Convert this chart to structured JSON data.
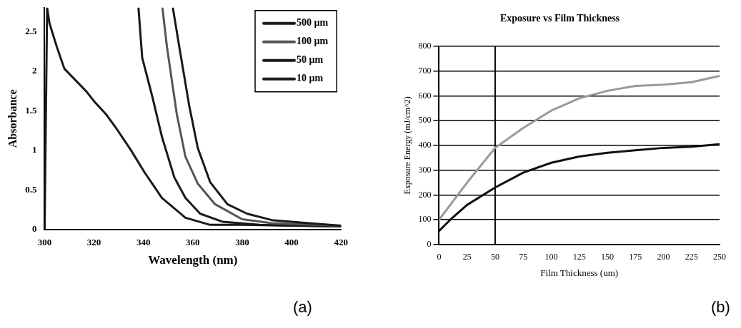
{
  "chart_data": [
    {
      "type": "line",
      "xlabel": "Wavelength (nm)",
      "ylabel": "Absorbance",
      "xlim": [
        300,
        420
      ],
      "ylim": [
        0,
        2.8
      ],
      "xticks": [
        300,
        320,
        340,
        360,
        380,
        400,
        420
      ],
      "yticks": [
        0,
        0.5,
        1,
        1.5,
        2,
        2.5
      ],
      "grid": false,
      "legend": "top right",
      "marker": "none",
      "annotations": [
        "(a)"
      ],
      "series": [
        {
          "name": "500 µm",
          "color": "#1a1a1a",
          "x": [
            351.9,
            354.5,
            358.5,
            362,
            367,
            374,
            382,
            392,
            407,
            420
          ],
          "values": [
            2.8,
            2.31,
            1.57,
            1.03,
            0.6,
            0.32,
            0.2,
            0.12,
            0.08,
            0.05
          ]
        },
        {
          "name": "100 µm",
          "color": "#555555",
          "x": [
            347.7,
            349.5,
            353.5,
            357,
            362,
            369,
            380,
            392,
            420
          ],
          "values": [
            2.8,
            2.31,
            1.46,
            0.92,
            0.58,
            0.32,
            0.13,
            0.08,
            0.05
          ]
        },
        {
          "name": "50 µm",
          "color": "#1a1a1a",
          "x": [
            338,
            339.5,
            343.5,
            347.5,
            352.5,
            357,
            363,
            372,
            387,
            420
          ],
          "values": [
            2.8,
            2.17,
            1.69,
            1.17,
            0.66,
            0.4,
            0.2,
            0.1,
            0.06,
            0.04
          ]
        },
        {
          "name": "10 µm",
          "color": "#1a1a1a",
          "x": [
            300,
            301,
            302,
            305,
            308,
            317,
            320,
            325,
            329.4,
            335,
            340.5,
            347.5,
            357,
            367,
            380,
            400,
            420
          ],
          "values": [
            0,
            2.8,
            2.6,
            2.3,
            2.03,
            1.74,
            1.62,
            1.45,
            1.26,
            1.0,
            0.72,
            0.4,
            0.15,
            0.06,
            0.06,
            0.05,
            0.04
          ]
        }
      ]
    },
    {
      "type": "line",
      "title": "Exposure vs Film Thickness",
      "xlabel": "Film Thickness (um)",
      "ylabel": "Exposure Energy (mJ/cm^2)",
      "xlim": [
        0,
        250
      ],
      "ylim": [
        0,
        800
      ],
      "xticks": [
        0,
        25,
        50,
        75,
        100,
        125,
        150,
        175,
        200,
        225,
        250
      ],
      "yticks": [
        0,
        100,
        200,
        300,
        400,
        500,
        600,
        700,
        800
      ],
      "grid": "y",
      "legend": false,
      "marker": "none",
      "annotations": [
        "(b)"
      ],
      "ref_lines": [
        {
          "axis": "x",
          "value": 50,
          "color": "#000000"
        }
      ],
      "series": [
        {
          "color": "#999999",
          "x": [
            0,
            10,
            25,
            50,
            75,
            100,
            125,
            150,
            175,
            200,
            225,
            250
          ],
          "values": [
            100,
            160,
            250,
            390,
            470,
            540,
            590,
            620,
            640,
            645,
            655,
            680
          ]
        },
        {
          "color": "#111111",
          "x": [
            0,
            10,
            25,
            50,
            75,
            100,
            125,
            150,
            175,
            200,
            225,
            250
          ],
          "values": [
            55,
            100,
            160,
            230,
            290,
            330,
            355,
            370,
            380,
            390,
            395,
            405
          ]
        }
      ]
    }
  ]
}
